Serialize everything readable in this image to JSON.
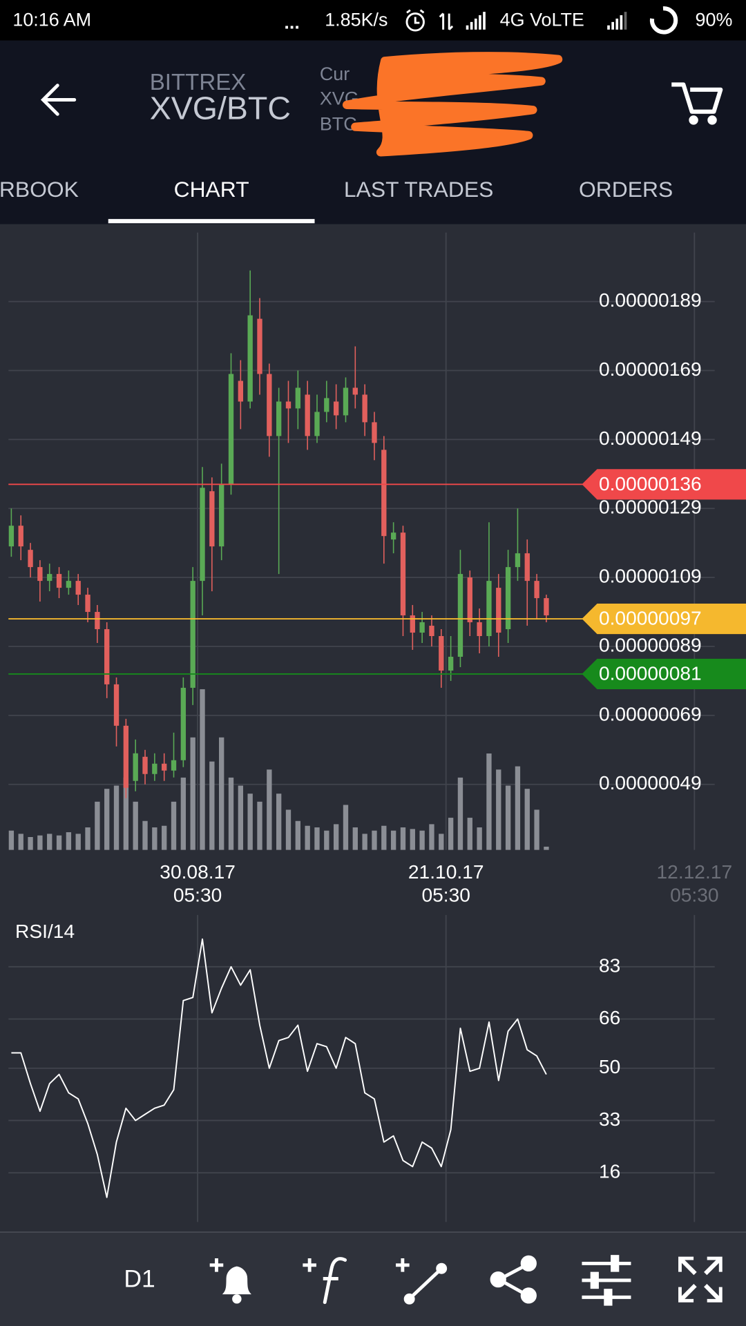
{
  "status_bar": {
    "time": "10:16 AM",
    "dots": "...",
    "speed": "1.85K/s",
    "network": "4G VoLTE",
    "battery": "90%"
  },
  "header": {
    "exchange": "BITTREX",
    "pair": "XVG/BTC",
    "info_lines": [
      "Cur",
      "XVG",
      "BTC"
    ]
  },
  "tabs": [
    "ORDERBOOK",
    "CHART",
    "LAST TRADES",
    "ORDERS"
  ],
  "active_tab": 1,
  "chart_data": [
    {
      "type": "candlestick",
      "open": [
        1.18e-06,
        1.24e-06,
        1.17e-06,
        1.12e-06,
        1.08e-06,
        1.1e-06,
        1.06e-06,
        1.08e-06,
        1.04e-06,
        9.9e-07,
        9.4e-07,
        7.8e-07,
        6.6e-07,
        5e-07,
        5.7e-07,
        5.2e-07,
        5.5e-07,
        5.3e-07,
        5.6e-07,
        7.7e-07,
        1.08e-06,
        1.34e-06,
        1.18e-06,
        1.36e-06,
        1.66e-06,
        1.6e-06,
        1.84e-06,
        1.68e-06,
        1.5e-06,
        1.6e-06,
        1.58e-06,
        1.62e-06,
        1.5e-06,
        1.57e-06,
        1.6e-06,
        1.56e-06,
        1.64e-06,
        1.62e-06,
        1.54e-06,
        1.46e-06,
        1.2e-06,
        1.22e-06,
        9.8e-07,
        9.3e-07,
        9.5e-07,
        9.2e-07,
        8.2e-07,
        8.6e-07,
        1.09e-06,
        9.6e-07,
        9.2e-07,
        1.06e-06,
        9.4e-07,
        1.12e-06,
        1.16e-06,
        1.08e-06,
        1.03e-06
      ],
      "high": [
        1.29e-06,
        1.27e-06,
        1.19e-06,
        1.14e-06,
        1.13e-06,
        1.12e-06,
        1.11e-06,
        1.1e-06,
        1.06e-06,
        1.01e-06,
        9.6e-07,
        8e-07,
        6.8e-07,
        6.2e-07,
        5.9e-07,
        5.8e-07,
        5.8e-07,
        6.4e-07,
        8e-07,
        1.12e-06,
        1.41e-06,
        1.38e-06,
        1.42e-06,
        1.74e-06,
        1.72e-06,
        1.98e-06,
        1.9e-06,
        1.71e-06,
        1.64e-06,
        1.66e-06,
        1.69e-06,
        1.66e-06,
        1.62e-06,
        1.66e-06,
        1.65e-06,
        1.67e-06,
        1.76e-06,
        1.65e-06,
        1.57e-06,
        1.5e-06,
        1.25e-06,
        1.24e-06,
        1.01e-06,
        9.9e-07,
        9.8e-07,
        9.4e-07,
        9.2e-07,
        1.17e-06,
        1.11e-06,
        1e-06,
        1.25e-06,
        1.1e-06,
        1.17e-06,
        1.29e-06,
        1.2e-06,
        1.1e-06,
        1.04e-06
      ],
      "low": [
        1.15e-06,
        1.14e-06,
        1.09e-06,
        1.02e-06,
        1.05e-06,
        1.03e-06,
        1.04e-06,
        1.01e-06,
        9.6e-07,
        9e-07,
        7.4e-07,
        6e-07,
        4.5e-07,
        4.7e-07,
        4.9e-07,
        5e-07,
        5e-07,
        5.1e-07,
        5.4e-07,
        7.2e-07,
        9.8e-07,
        1.05e-06,
        1.14e-06,
        1.33e-06,
        1.52e-06,
        1.58e-06,
        1.62e-06,
        1.44e-06,
        1.1e-06,
        1.48e-06,
        1.52e-06,
        1.46e-06,
        1.48e-06,
        1.54e-06,
        1.52e-06,
        1.54e-06,
        1.58e-06,
        1.5e-06,
        1.43e-06,
        1.13e-06,
        1.16e-06,
        9.2e-07,
        8.8e-07,
        9e-07,
        8.9e-07,
        7.7e-07,
        7.9e-07,
        8.3e-07,
        9.2e-07,
        8.7e-07,
        8.9e-07,
        8.6e-07,
        9e-07,
        1.08e-06,
        9.5e-07,
        9.7e-07,
        9.6e-07
      ],
      "close": [
        1.24e-06,
        1.18e-06,
        1.12e-06,
        1.08e-06,
        1.1e-06,
        1.06e-06,
        1.08e-06,
        1.04e-06,
        9.9e-07,
        9.4e-07,
        7.8e-07,
        6.6e-07,
        4.8e-07,
        5.8e-07,
        5.2e-07,
        5.5e-07,
        5.3e-07,
        5.6e-07,
        7.7e-07,
        1.08e-06,
        1.35e-06,
        1.18e-06,
        1.36e-06,
        1.68e-06,
        1.6e-06,
        1.85e-06,
        1.68e-06,
        1.5e-06,
        1.6e-06,
        1.58e-06,
        1.64e-06,
        1.5e-06,
        1.57e-06,
        1.61e-06,
        1.56e-06,
        1.64e-06,
        1.62e-06,
        1.54e-06,
        1.48e-06,
        1.21e-06,
        1.22e-06,
        9.8e-07,
        9.3e-07,
        9.6e-07,
        9.2e-07,
        8.2e-07,
        8.6e-07,
        1.1e-06,
        9.6e-07,
        9.2e-07,
        1.08e-06,
        9.3e-07,
        1.12e-06,
        1.16e-06,
        1.08e-06,
        1.03e-06,
        9.8e-07
      ],
      "volume": [
        12,
        10,
        8,
        9,
        10,
        9,
        11,
        10,
        14,
        30,
        38,
        40,
        45,
        30,
        18,
        14,
        15,
        30,
        45,
        70,
        100,
        55,
        70,
        45,
        40,
        35,
        30,
        50,
        35,
        25,
        18,
        15,
        14,
        12,
        16,
        28,
        14,
        10,
        12,
        15,
        12,
        14,
        13,
        12,
        16,
        10,
        20,
        45,
        20,
        14,
        60,
        50,
        40,
        52,
        38,
        25,
        2
      ],
      "volume_ylim": [
        0,
        100
      ],
      "up_color": "#5aaa55",
      "down_color": "#e2605d",
      "volume_color": "#8b8e95",
      "xlim": [
        -0.3,
        76.9
      ],
      "xticks": [
        {
          "value": 19.5,
          "label": "30.08.17\n05:30"
        },
        {
          "value": 45.5,
          "label": "21.10.17\n05:30"
        },
        {
          "value": 71.5,
          "label": "12.12.17\n05:30"
        }
      ],
      "ylim": [
        3e-07,
        2.09e-06
      ],
      "yticks": [
        {
          "value": 1.89e-06,
          "label": "0.00000189"
        },
        {
          "value": 1.69e-06,
          "label": "0.00000169"
        },
        {
          "value": 1.49e-06,
          "label": "0.00000149"
        },
        {
          "value": 1.29e-06,
          "label": "0.00000129"
        },
        {
          "value": 1.09e-06,
          "label": "0.00000109"
        },
        {
          "value": 8.9e-07,
          "label": "0.00000089"
        },
        {
          "value": 6.9e-07,
          "label": "0.00000069"
        },
        {
          "value": 4.9e-07,
          "label": "0.00000049"
        }
      ],
      "levels": [
        {
          "value": 1.36e-06,
          "label": "0.00000136",
          "color": "#f0484a"
        },
        {
          "value": 9.7e-07,
          "label": "0.00000097",
          "color": "#f5b82e"
        },
        {
          "value": 8.1e-07,
          "label": "0.00000081",
          "color": "#178a1c"
        }
      ],
      "grid": true
    },
    {
      "type": "line",
      "title": "RSI/14",
      "values": [
        55,
        55,
        45,
        36,
        45,
        48,
        42,
        40,
        32,
        22,
        8,
        26,
        37,
        33,
        35,
        37,
        38,
        43,
        72,
        73,
        92,
        68,
        76,
        83,
        77,
        82,
        64,
        50,
        59,
        60,
        64,
        49,
        58,
        57,
        50,
        60,
        58,
        42,
        40,
        26,
        28,
        20,
        18,
        26,
        24,
        18,
        30,
        63,
        49,
        50,
        65,
        46,
        62,
        66,
        56,
        54,
        48
      ],
      "color": "#ffffff",
      "xlim": [
        -0.3,
        76.9
      ],
      "ylim": [
        0,
        99
      ],
      "yticks": [
        83,
        66,
        50,
        33,
        16
      ],
      "grid": true
    }
  ],
  "toolbar": {
    "timeframe": "D1"
  }
}
